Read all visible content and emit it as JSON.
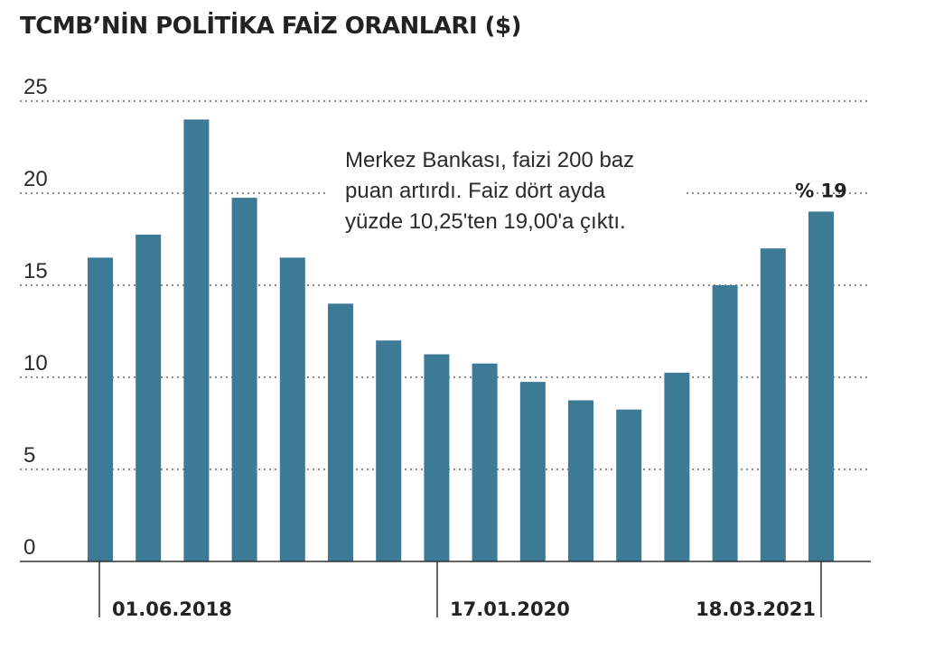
{
  "title": "TCMB’NİN POLİTİKA FAİZ ORANLARI ($)",
  "colors": {
    "bar": "#3d7a96",
    "grid": "#666666",
    "text": "#222222",
    "note_bg": "#ffffff"
  },
  "annotation": {
    "lines": [
      "Merkez Bankası, faizi 200 baz",
      "puan artırdı. Faiz dört ayda",
      "yüzde 10,25'ten 19,00'a çıktı."
    ]
  },
  "chart_data": {
    "type": "bar",
    "title": "TCMB’NİN POLİTİKA FAİZ ORANLARI ($)",
    "xlabel": "",
    "ylabel": "",
    "ylim": [
      0,
      25
    ],
    "yticks": [
      "0",
      "5",
      "10",
      "15",
      "20",
      "25"
    ],
    "grid": true,
    "values": [
      16.5,
      17.75,
      24,
      19.75,
      16.5,
      14,
      12,
      11.25,
      10.75,
      9.75,
      8.75,
      8.25,
      10.25,
      15,
      17,
      19
    ],
    "date_markers": [
      {
        "index": 0,
        "label": "01.06.2018"
      },
      {
        "index": 7,
        "label": "17.01.2020"
      },
      {
        "index": 15,
        "label": "18.03.2021"
      }
    ],
    "end_label": "% 19"
  }
}
